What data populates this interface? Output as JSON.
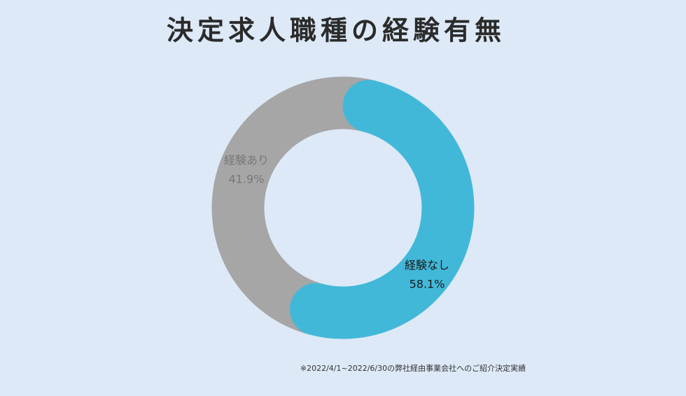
{
  "chart_data": {
    "type": "donut",
    "title": "決定求人職種の経験有無",
    "categories": [
      "経験なし",
      "経験あり"
    ],
    "values": [
      58.1,
      41.9
    ],
    "value_labels": [
      "58.1%",
      "41.9%"
    ],
    "colors": [
      "#42b8d9",
      "#a6a6a6"
    ],
    "label_colors": [
      "#1a1a1a",
      "#777777"
    ],
    "note": "※2022/4/1~2022/6/30の弊社経由事業会社へのご紹介決定実績"
  }
}
